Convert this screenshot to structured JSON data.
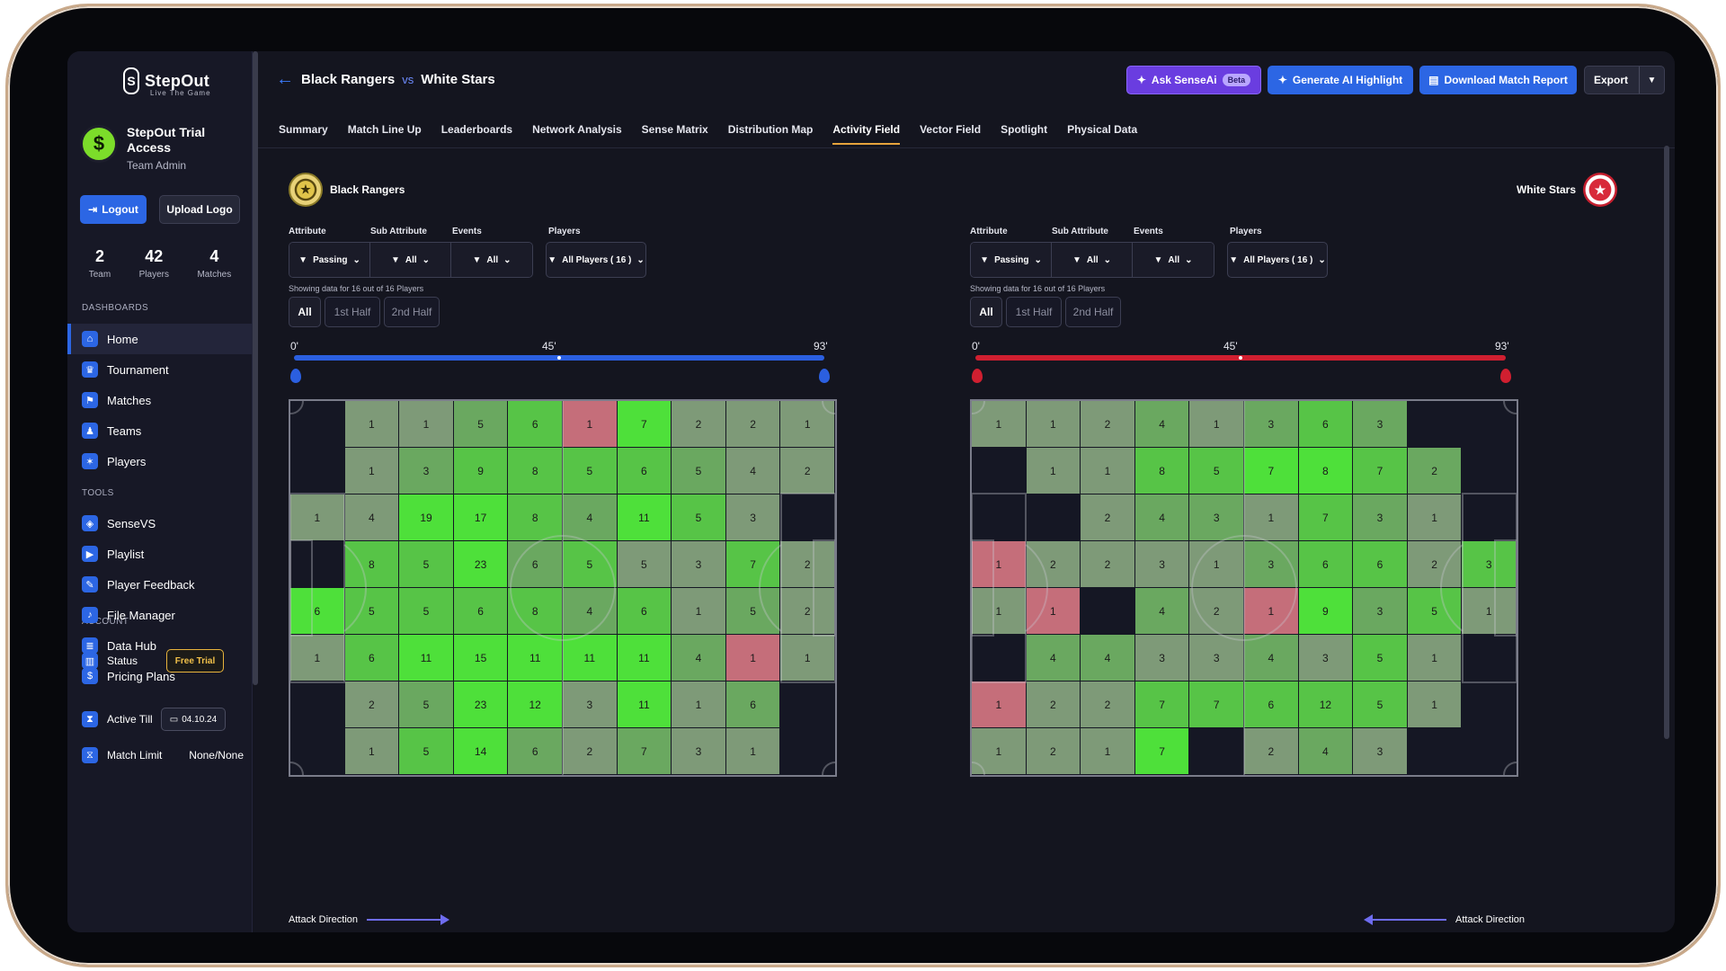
{
  "brand": {
    "name": "StepOut",
    "tagline": "Live The Game"
  },
  "account_card": {
    "title": "StepOut Trial Access",
    "role": "Team Admin"
  },
  "buttons": {
    "logout": "Logout",
    "upload_logo": "Upload Logo"
  },
  "stats": [
    {
      "value": "2",
      "label": "Team"
    },
    {
      "value": "42",
      "label": "Players"
    },
    {
      "value": "4",
      "label": "Matches"
    }
  ],
  "sections": {
    "dashboards": "DASHBOARDS",
    "tools": "TOOLS",
    "account": "ACCOUNT"
  },
  "nav_dashboards": [
    {
      "label": "Home",
      "icon": "home-icon"
    },
    {
      "label": "Tournament",
      "icon": "trophy-icon"
    },
    {
      "label": "Matches",
      "icon": "matches-icon"
    },
    {
      "label": "Teams",
      "icon": "teams-icon"
    },
    {
      "label": "Players",
      "icon": "player-icon"
    }
  ],
  "nav_tools": [
    {
      "label": "SenseVS",
      "icon": "sensevs-icon"
    },
    {
      "label": "Playlist",
      "icon": "playlist-icon"
    },
    {
      "label": "Player Feedback",
      "icon": "feedback-icon"
    },
    {
      "label": "File Manager",
      "icon": "file-icon"
    },
    {
      "label": "Data Hub",
      "icon": "database-icon"
    },
    {
      "label": "Pricing Plans",
      "icon": "dollar-icon"
    }
  ],
  "account_items": {
    "status_label": "Status",
    "status_value": "Free Trial",
    "active_label": "Active Till",
    "active_value": "04.10.24",
    "limit_label": "Match Limit",
    "limit_value": "None/None"
  },
  "header": {
    "home_team": "Black Rangers",
    "vs": "vs",
    "away_team": "White Stars"
  },
  "actions": {
    "ask_ai": "Ask SenseAi",
    "beta": "Beta",
    "generate": "Generate AI Highlight",
    "download": "Download Match Report",
    "export": "Export"
  },
  "tabs": [
    "Summary",
    "Match Line Up",
    "Leaderboards",
    "Network Analysis",
    "Sense Matrix",
    "Distribution Map",
    "Activity Field",
    "Vector Field",
    "Spotlight",
    "Physical Data"
  ],
  "active_tab": "Activity Field",
  "filters": {
    "labels": {
      "attribute": "Attribute",
      "sub_attribute": "Sub Attribute",
      "events": "Events",
      "players": "Players"
    },
    "values": {
      "attribute": "Passing",
      "sub_attribute": "All",
      "events": "All",
      "players": "All Players ( 16 )"
    },
    "showing": "Showing data for 16  out of 16 Players",
    "halves": [
      "All",
      "1st Half",
      "2nd Half"
    ]
  },
  "timeline": {
    "start": "0'",
    "mid": "45'",
    "end": "93'"
  },
  "attack_direction": "Attack Direction",
  "colors": {
    "home_track": "#2b5fe0",
    "away_track": "#d01f30",
    "accent": "#2c66e4"
  },
  "home_grid": [
    [
      "",
      "1",
      "1",
      "5",
      "6",
      "1",
      "7",
      "2",
      "2",
      "1"
    ],
    [
      "",
      "1",
      "3",
      "9",
      "8",
      "5",
      "6",
      "5",
      "4",
      "2"
    ],
    [
      "1",
      "4",
      "19",
      "17",
      "8",
      "4",
      "11",
      "5",
      "3",
      ""
    ],
    [
      "",
      "8",
      "5",
      "23",
      "6",
      "5",
      "5",
      "3",
      "7",
      "2"
    ],
    [
      "6",
      "5",
      "5",
      "6",
      "8",
      "4",
      "6",
      "1",
      "5",
      "2"
    ],
    [
      "1",
      "6",
      "11",
      "15",
      "11",
      "11",
      "11",
      "4",
      "1",
      "1"
    ],
    [
      "",
      "2",
      "5",
      "23",
      "12",
      "3",
      "11",
      "1",
      "6",
      ""
    ],
    [
      "",
      "1",
      "5",
      "14",
      "6",
      "2",
      "7",
      "3",
      "1",
      ""
    ]
  ],
  "home_shade": [
    [
      0,
      1,
      1,
      2,
      3,
      "r",
      4,
      1,
      1,
      1
    ],
    [
      0,
      1,
      2,
      3,
      3,
      3,
      3,
      2,
      1,
      1
    ],
    [
      1,
      1,
      4,
      4,
      3,
      2,
      4,
      3,
      1,
      0
    ],
    [
      0,
      3,
      3,
      4,
      2,
      3,
      1,
      1,
      3,
      1
    ],
    [
      4,
      3,
      3,
      3,
      3,
      2,
      3,
      1,
      2,
      1
    ],
    [
      1,
      3,
      4,
      4,
      4,
      4,
      4,
      2,
      "r",
      1
    ],
    [
      0,
      1,
      2,
      4,
      4,
      1,
      4,
      1,
      2,
      0
    ],
    [
      0,
      1,
      3,
      4,
      2,
      1,
      2,
      1,
      1,
      0
    ]
  ],
  "away_grid": [
    [
      "1",
      "1",
      "2",
      "4",
      "1",
      "3",
      "6",
      "3",
      "",
      ""
    ],
    [
      "",
      "1",
      "1",
      "8",
      "5",
      "7",
      "8",
      "7",
      "2",
      ""
    ],
    [
      "",
      "",
      "2",
      "4",
      "3",
      "1",
      "7",
      "3",
      "1",
      ""
    ],
    [
      "1",
      "2",
      "2",
      "3",
      "1",
      "3",
      "6",
      "6",
      "2",
      "3"
    ],
    [
      "1",
      "1",
      "",
      "4",
      "2",
      "1",
      "9",
      "3",
      "5",
      "1"
    ],
    [
      "",
      "4",
      "4",
      "3",
      "3",
      "4",
      "3",
      "5",
      "1",
      ""
    ],
    [
      "1",
      "2",
      "2",
      "7",
      "7",
      "6",
      "12",
      "5",
      "1",
      ""
    ],
    [
      "1",
      "2",
      "1",
      "7",
      "",
      "2",
      "4",
      "3",
      "",
      ""
    ]
  ],
  "away_shade": [
    [
      1,
      1,
      1,
      2,
      1,
      2,
      3,
      2,
      0,
      0
    ],
    [
      0,
      1,
      1,
      3,
      3,
      4,
      4,
      3,
      2,
      0
    ],
    [
      0,
      0,
      1,
      2,
      2,
      1,
      3,
      2,
      1,
      0
    ],
    [
      "r",
      1,
      1,
      1,
      1,
      2,
      3,
      3,
      1,
      3
    ],
    [
      1,
      "r",
      0,
      2,
      1,
      "r",
      4,
      2,
      3,
      1
    ],
    [
      0,
      2,
      2,
      1,
      1,
      2,
      1,
      3,
      1,
      0
    ],
    [
      "r",
      1,
      1,
      3,
      3,
      3,
      3,
      3,
      1,
      0
    ],
    [
      1,
      1,
      1,
      4,
      0,
      1,
      2,
      1,
      0,
      0
    ]
  ]
}
